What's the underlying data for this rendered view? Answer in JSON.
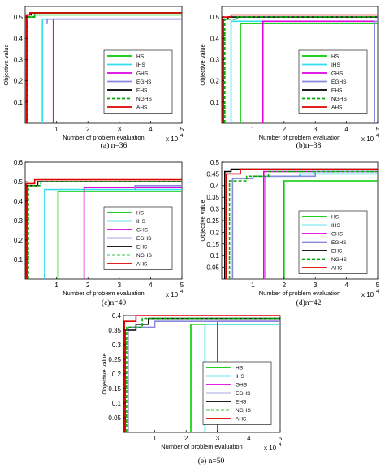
{
  "series_styles": [
    {
      "name": "HS",
      "color": "#00cc00",
      "dash": false
    },
    {
      "name": "IHS",
      "color": "#33ddee",
      "dash": false
    },
    {
      "name": "GHS",
      "color": "#dd00dd",
      "dash": false
    },
    {
      "name": "EGHS",
      "color": "#8888dd",
      "dash": false
    },
    {
      "name": "EHS",
      "color": "#000000",
      "dash": false
    },
    {
      "name": "NGHS",
      "color": "#00aa00",
      "dash": true
    },
    {
      "name": "AHS",
      "color": "#dd0000",
      "dash": false
    }
  ],
  "chart_data": [
    {
      "type": "line",
      "caption": "(a) n=36",
      "xlabel": "Number of problem evaluation",
      "ylabel": "Objective value",
      "x_exponent_label": "x 10",
      "x_exponent": "4",
      "xlim": [
        0,
        5
      ],
      "ylim": [
        0,
        0.55
      ],
      "xticks": [
        "1",
        "2",
        "3",
        "4",
        "5"
      ],
      "yticks": [
        "0.1",
        "0.2",
        "0.3",
        "0.4",
        "0.5"
      ],
      "legend_position": "right",
      "series": [
        {
          "name": "HS",
          "x": [
            0.06,
            0.06,
            0.3,
            0.3,
            5
          ],
          "y": [
            0,
            0.5,
            0.5,
            0.51,
            0.51
          ]
        },
        {
          "name": "IHS",
          "x": [
            0.55,
            0.55,
            5
          ],
          "y": [
            0,
            0.49,
            0.49
          ]
        },
        {
          "name": "GHS",
          "x": [
            0.9,
            0.9,
            5
          ],
          "y": [
            0,
            0.49,
            0.49
          ]
        },
        {
          "name": "EGHS",
          "x": [
            0.7,
            0.7,
            5
          ],
          "y": [
            0.47,
            0.49,
            0.49
          ]
        },
        {
          "name": "EHS",
          "x": [
            0.05,
            0.05,
            0.2,
            0.2,
            5
          ],
          "y": [
            0,
            0.51,
            0.51,
            0.52,
            0.52
          ]
        },
        {
          "name": "NGHS",
          "x": [
            0.05,
            0.05,
            0.3,
            0.3,
            5
          ],
          "y": [
            0,
            0.5,
            0.5,
            0.52,
            0.52
          ]
        },
        {
          "name": "AHS",
          "x": [
            0.04,
            0.04,
            0.15,
            0.15,
            5
          ],
          "y": [
            0,
            0.51,
            0.51,
            0.52,
            0.52
          ]
        }
      ]
    },
    {
      "type": "line",
      "caption": "(b)n=38",
      "xlabel": "Number of problem evaluation",
      "ylabel": "Objective value",
      "x_exponent_label": "x 10",
      "x_exponent": "4",
      "xlim": [
        0,
        5
      ],
      "ylim": [
        0,
        0.55
      ],
      "xticks": [
        "1",
        "2",
        "3",
        "4",
        "5"
      ],
      "yticks": [
        "0.1",
        "0.2",
        "0.3",
        "0.4",
        "0.5"
      ],
      "legend_position": "right",
      "series": [
        {
          "name": "HS",
          "x": [
            0.6,
            0.6,
            5
          ],
          "y": [
            0,
            0.47,
            0.47
          ]
        },
        {
          "name": "IHS",
          "x": [
            0.3,
            0.3,
            5
          ],
          "y": [
            0,
            0.48,
            0.48
          ]
        },
        {
          "name": "GHS",
          "x": [
            1.32,
            1.32,
            5
          ],
          "y": [
            0,
            0.48,
            0.48
          ]
        },
        {
          "name": "EGHS",
          "x": [
            4.9,
            4.9,
            5
          ],
          "y": [
            0,
            0.48,
            0.48
          ]
        },
        {
          "name": "EHS",
          "x": [
            0.05,
            0.05,
            0.2,
            0.2,
            5
          ],
          "y": [
            0,
            0.49,
            0.49,
            0.5,
            0.5
          ]
        },
        {
          "name": "NGHS",
          "x": [
            0.1,
            0.1,
            0.5,
            0.5,
            5
          ],
          "y": [
            0,
            0.49,
            0.49,
            0.5,
            0.5
          ]
        },
        {
          "name": "AHS",
          "x": [
            0.03,
            0.03,
            0.3,
            0.3,
            5
          ],
          "y": [
            0,
            0.5,
            0.5,
            0.51,
            0.51
          ]
        }
      ]
    },
    {
      "type": "line",
      "caption": "(c)n=40",
      "xlabel": "Number of problem evaluation",
      "ylabel": "",
      "x_exponent_label": "x 10",
      "x_exponent": "4",
      "xlim": [
        0,
        5
      ],
      "ylim": [
        0,
        0.6
      ],
      "xticks": [
        "1",
        "2",
        "3",
        "4",
        "5"
      ],
      "yticks": [
        "0.1",
        "0.2",
        "0.3",
        "0.4",
        "0.5",
        "0.6"
      ],
      "legend_position": "right",
      "series": [
        {
          "name": "HS",
          "x": [
            1.05,
            1.05,
            5
          ],
          "y": [
            0,
            0.45,
            0.45
          ]
        },
        {
          "name": "IHS",
          "x": [
            0.62,
            0.62,
            5
          ],
          "y": [
            0,
            0.46,
            0.46
          ]
        },
        {
          "name": "GHS",
          "x": [
            1.88,
            1.88,
            5
          ],
          "y": [
            0,
            0.47,
            0.47
          ]
        },
        {
          "name": "EGHS",
          "x": [
            3.5,
            3.5,
            5
          ],
          "y": [
            0.46,
            0.48,
            0.48
          ]
        },
        {
          "name": "EHS",
          "x": [
            0.05,
            0.05,
            0.4,
            0.4,
            5
          ],
          "y": [
            0,
            0.48,
            0.48,
            0.5,
            0.5
          ]
        },
        {
          "name": "NGHS",
          "x": [
            0.1,
            0.1,
            0.5,
            0.5,
            5
          ],
          "y": [
            0,
            0.48,
            0.48,
            0.5,
            0.5
          ]
        },
        {
          "name": "AHS",
          "x": [
            0.03,
            0.03,
            0.3,
            0.3,
            5
          ],
          "y": [
            0,
            0.49,
            0.49,
            0.51,
            0.51
          ]
        }
      ]
    },
    {
      "type": "line",
      "caption": "(d)n=42",
      "xlabel": "Number of problem evaluation",
      "ylabel": "Objective value",
      "x_exponent_label": "x 10",
      "x_exponent": "4",
      "xlim": [
        0,
        5
      ],
      "ylim": [
        0,
        0.5
      ],
      "xticks": [
        "1",
        "2",
        "3",
        "4",
        "5"
      ],
      "yticks": [
        "0.05",
        "0.1",
        "0.15",
        "0.2",
        "0.25",
        "0.3",
        "0.35",
        "0.4",
        "0.45",
        "0.5"
      ],
      "legend_position": "bottom-right",
      "series": [
        {
          "name": "HS",
          "x": [
            2.0,
            2.0,
            5
          ],
          "y": [
            0,
            0.42,
            0.42
          ]
        },
        {
          "name": "IHS",
          "x": [
            1.4,
            1.4,
            2.5,
            2.5,
            5
          ],
          "y": [
            0,
            0.44,
            0.44,
            0.45,
            0.45
          ]
        },
        {
          "name": "GHS",
          "x": [
            1.35,
            1.35,
            5
          ],
          "y": [
            0,
            0.46,
            0.46
          ]
        },
        {
          "name": "EGHS",
          "x": [
            0.35,
            0.35,
            1.0,
            1.0,
            3.0,
            3.0,
            5
          ],
          "y": [
            0,
            0.43,
            0.43,
            0.44,
            0.44,
            0.46,
            0.46
          ]
        },
        {
          "name": "EHS",
          "x": [
            0.1,
            0.1,
            0.3,
            0.3,
            5
          ],
          "y": [
            0,
            0.46,
            0.46,
            0.47,
            0.47
          ]
        },
        {
          "name": "NGHS",
          "x": [
            0.25,
            0.25,
            0.8,
            0.8,
            1.5,
            1.5,
            5
          ],
          "y": [
            0,
            0.42,
            0.42,
            0.44,
            0.44,
            0.46,
            0.46
          ]
        },
        {
          "name": "AHS",
          "x": [
            0.15,
            0.15,
            0.6,
            0.6,
            5
          ],
          "y": [
            0,
            0.45,
            0.45,
            0.47,
            0.47
          ]
        }
      ]
    },
    {
      "type": "line",
      "caption": "(e) n=50",
      "xlabel": "Number of problem evaluation",
      "ylabel": "Objective value",
      "x_exponent_label": "x 10",
      "x_exponent": "4",
      "xlim": [
        0,
        5
      ],
      "ylim": [
        0,
        0.4
      ],
      "xticks": [
        "1",
        "2",
        "3",
        "4",
        "5"
      ],
      "yticks": [
        "0.05",
        "0.1",
        "0.15",
        "0.2",
        "0.25",
        "0.3",
        "0.35",
        "0.4"
      ],
      "legend_position": "right",
      "series": [
        {
          "name": "HS",
          "x": [
            2.15,
            2.15,
            5
          ],
          "y": [
            0,
            0.37,
            0.37
          ]
        },
        {
          "name": "IHS",
          "x": [
            2.6,
            2.6,
            5
          ],
          "y": [
            0,
            0.37,
            0.37
          ]
        },
        {
          "name": "GHS",
          "x": [
            3.0,
            3.0,
            5
          ],
          "y": [
            0,
            0.38,
            0.38
          ]
        },
        {
          "name": "EGHS",
          "x": [
            0.15,
            0.15,
            1.0,
            1.0,
            5
          ],
          "y": [
            0,
            0.36,
            0.36,
            0.38,
            0.38
          ]
        },
        {
          "name": "EHS",
          "x": [
            0.05,
            0.05,
            0.4,
            0.4,
            0.8,
            0.8,
            5
          ],
          "y": [
            0,
            0.35,
            0.35,
            0.37,
            0.37,
            0.39,
            0.39
          ]
        },
        {
          "name": "NGHS",
          "x": [
            0.1,
            0.1,
            0.6,
            0.6,
            5
          ],
          "y": [
            0,
            0.36,
            0.36,
            0.39,
            0.39
          ]
        },
        {
          "name": "AHS",
          "x": [
            0.03,
            0.03,
            0.4,
            0.4,
            5
          ],
          "y": [
            0,
            0.38,
            0.38,
            0.4,
            0.4
          ]
        }
      ]
    }
  ]
}
